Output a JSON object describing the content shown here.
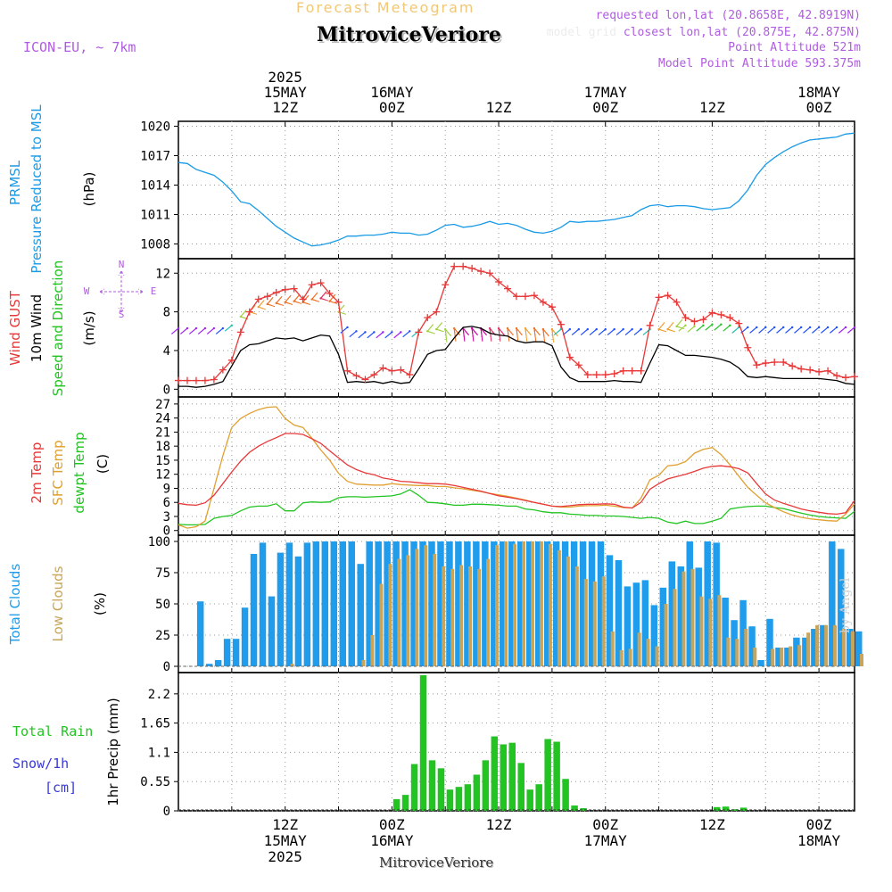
{
  "header": {
    "product": "Forecast Meteogram",
    "location": "MitroviceVeriore",
    "model": "ICON-EU, ~ 7km",
    "requested": "requested lon,lat (20.8658E, 42.8919N)",
    "closest": "closest lon,lat (20.875E, 42.875N)",
    "grid_prefix": "model grid",
    "point_altitude": "Point Altitude 521m",
    "model_altitude": "Model Point Altitude 593.375m",
    "credit": "by Angel",
    "footer_location": "MitroviceVeriore"
  },
  "time_axis": {
    "top": [
      {
        "hour": 12,
        "lines": [
          "2025",
          "15MAY",
          "12Z"
        ]
      },
      {
        "hour": 24,
        "lines": [
          "16MAY",
          "00Z"
        ]
      },
      {
        "hour": 36,
        "lines": [
          "12Z"
        ]
      },
      {
        "hour": 48,
        "lines": [
          "17MAY",
          "00Z"
        ]
      },
      {
        "hour": 60,
        "lines": [
          "12Z"
        ]
      },
      {
        "hour": 72,
        "lines": [
          "18MAY",
          "00Z"
        ]
      }
    ],
    "bottom": [
      {
        "hour": 12,
        "lines": [
          "12Z",
          "15MAY",
          "2025"
        ]
      },
      {
        "hour": 24,
        "lines": [
          "00Z",
          "16MAY"
        ]
      },
      {
        "hour": 36,
        "lines": [
          "12Z"
        ]
      },
      {
        "hour": 48,
        "lines": [
          "00Z",
          "17MAY"
        ]
      },
      {
        "hour": 60,
        "lines": [
          "12Z"
        ]
      },
      {
        "hour": 72,
        "lines": [
          "00Z",
          "18MAY"
        ]
      }
    ]
  },
  "panels": {
    "pressure": {
      "labels": [
        "PRMSL",
        "Pressure Reduced to MSL"
      ],
      "unit": "(hPa)"
    },
    "wind": {
      "labels": [
        "Wind GUST",
        "10m Wind",
        "Speed and Direction"
      ],
      "unit": "(m/s)",
      "compass": [
        "N",
        "S",
        "W",
        "E"
      ]
    },
    "temp": {
      "labels": [
        "2m Temp",
        "SFC Temp",
        "dewpt Temp"
      ],
      "unit": "(C)"
    },
    "clouds": {
      "labels": [
        "Total Clouds",
        "Low Clouds"
      ],
      "unit": "(%)"
    },
    "precip": {
      "labels": [
        "Total  Rain",
        "Snow/1h",
        "[cm]"
      ],
      "unit": "1hr Precip (mm)"
    }
  },
  "colors": {
    "pressure": "#1a9be6",
    "gust": "#e83838",
    "wind": "#000000",
    "sfc": "#e0a030",
    "dewpt": "#22c422",
    "t2m": "#e83838",
    "total": "#1f9ceb",
    "low": "#c8a55a",
    "rain": "#22c422",
    "purple": "#b05ce0",
    "header": "#f0c878"
  },
  "chart_data": [
    {
      "type": "line",
      "title": "PRMSL Pressure Reduced to MSL",
      "ylabel": "(hPa)",
      "x_start_hour": 0,
      "step_hours": 1,
      "ylim": [
        1006.5,
        1020.5
      ],
      "yticks": [
        1008,
        1011,
        1014,
        1017,
        1020
      ],
      "series": [
        {
          "name": "PRMSL",
          "values": [
            1016.3,
            1016.2,
            1015.6,
            1015.3,
            1015.0,
            1014.3,
            1013.4,
            1012.3,
            1012.1,
            1011.4,
            1010.6,
            1009.8,
            1009.2,
            1008.6,
            1008.2,
            1007.8,
            1007.9,
            1008.1,
            1008.4,
            1008.8,
            1008.8,
            1008.9,
            1008.9,
            1009.0,
            1009.2,
            1009.1,
            1009.1,
            1008.9,
            1009.0,
            1009.4,
            1009.9,
            1010.0,
            1009.7,
            1009.8,
            1010.0,
            1010.3,
            1010.0,
            1010.1,
            1009.9,
            1009.5,
            1009.2,
            1009.1,
            1009.3,
            1009.7,
            1010.3,
            1010.2,
            1010.3,
            1010.3,
            1010.4,
            1010.5,
            1010.7,
            1010.9,
            1011.5,
            1011.9,
            1012.0,
            1011.8,
            1011.9,
            1011.9,
            1011.8,
            1011.6,
            1011.5,
            1011.6,
            1011.7,
            1012.4,
            1013.5,
            1015.0,
            1016.1,
            1016.8,
            1017.4,
            1017.9,
            1018.3,
            1018.6,
            1018.7,
            1018.8,
            1018.9,
            1019.2,
            1019.3
          ]
        }
      ]
    },
    {
      "type": "line",
      "title": "Wind GUST / 10m Wind Speed and Direction",
      "ylabel": "(m/s)",
      "x_start_hour": 0,
      "step_hours": 1,
      "ylim": [
        -0.8,
        13.5
      ],
      "yticks": [
        0,
        4,
        8,
        12
      ],
      "series": [
        {
          "name": "Wind GUST",
          "values": [
            0.9,
            0.9,
            0.9,
            0.9,
            1.0,
            2.0,
            3.0,
            5.9,
            8.0,
            9.3,
            9.6,
            10.0,
            10.3,
            10.4,
            9.3,
            10.8,
            11.0,
            9.9,
            9.0,
            1.9,
            1.4,
            1.0,
            1.5,
            2.2,
            1.9,
            2.0,
            1.5,
            5.9,
            7.4,
            8.0,
            10.8,
            12.7,
            12.7,
            12.5,
            12.2,
            12.0,
            11.1,
            10.4,
            9.6,
            9.6,
            9.7,
            9.0,
            8.5,
            6.7,
            3.3,
            2.5,
            1.5,
            1.5,
            1.5,
            1.6,
            1.9,
            1.9,
            1.9,
            6.6,
            9.5,
            9.7,
            9.0,
            7.4,
            7.0,
            7.2,
            7.9,
            7.7,
            7.4,
            6.8,
            4.3,
            2.5,
            2.7,
            2.8,
            2.8,
            2.4,
            2.1,
            2.0,
            1.8,
            1.9,
            1.4,
            1.2,
            1.3
          ]
        },
        {
          "name": "10m Wind",
          "values": [
            0.3,
            0.3,
            0.2,
            0.3,
            0.5,
            0.8,
            2.4,
            4.0,
            4.6,
            4.7,
            5.0,
            5.3,
            5.2,
            5.3,
            5.0,
            5.3,
            5.6,
            5.5,
            3.6,
            0.7,
            0.8,
            0.7,
            0.8,
            0.6,
            0.8,
            0.6,
            0.7,
            2.1,
            3.6,
            4.0,
            4.1,
            5.3,
            6.4,
            6.5,
            6.3,
            5.8,
            5.6,
            5.5,
            5.0,
            4.8,
            4.9,
            4.9,
            4.5,
            2.3,
            1.2,
            0.8,
            0.8,
            0.8,
            0.8,
            0.9,
            0.8,
            0.8,
            0.7,
            2.7,
            4.6,
            4.5,
            4.0,
            3.5,
            3.5,
            3.4,
            3.3,
            3.1,
            2.8,
            2.2,
            1.3,
            1.2,
            1.3,
            1.2,
            1.1,
            1.1,
            1.1,
            1.1,
            1.1,
            1.0,
            0.9,
            0.6,
            0.5
          ]
        },
        {
          "name": "Wind barbs",
          "values": [
            6.3,
            6.3,
            6.3,
            6.3,
            6.3,
            6.3,
            6.6,
            7.5,
            8.0,
            8.5,
            8.8,
            8.9,
            9.0,
            9.1,
            9.0,
            9.3,
            9.4,
            9.1,
            8.0,
            6.4,
            6.0,
            5.9,
            5.9,
            5.9,
            5.9,
            5.9,
            6.0,
            6.0,
            6.0,
            6.2,
            6.2,
            6.3,
            6.3,
            6.3,
            6.3,
            6.3,
            6.3,
            6.3,
            6.3,
            6.3,
            6.3,
            6.2,
            6.2,
            6.2,
            6.2,
            6.2,
            6.2,
            6.2,
            6.2,
            6.2,
            6.2,
            6.2,
            6.2,
            6.2,
            6.2,
            6.2,
            6.5,
            6.6,
            6.5,
            6.6,
            6.7,
            6.7,
            6.6,
            6.4,
            6.4,
            6.4,
            6.4,
            6.4,
            6.4,
            6.4,
            6.4,
            6.4,
            6.4,
            6.4,
            6.4,
            6.4,
            6.4
          ]
        }
      ]
    },
    {
      "type": "line",
      "title": "2m Temp / SFC Temp / dewpt Temp",
      "ylabel": "(C)",
      "x_start_hour": 0,
      "step_hours": 1,
      "ylim": [
        -1,
        28.5
      ],
      "yticks": [
        0,
        3,
        6,
        9,
        12,
        15,
        18,
        21,
        24,
        27
      ],
      "series": [
        {
          "name": "2m Temp",
          "values": [
            5.8,
            5.5,
            5.4,
            5.9,
            7.5,
            10.0,
            12.5,
            14.8,
            16.7,
            18.0,
            19.0,
            19.8,
            20.7,
            20.7,
            20.5,
            19.6,
            18.6,
            17.0,
            15.5,
            14.0,
            13.0,
            12.3,
            11.9,
            11.2,
            10.9,
            10.5,
            10.4,
            10.2,
            10.0,
            10.0,
            9.9,
            9.6,
            9.2,
            8.8,
            8.4,
            7.9,
            7.4,
            7.1,
            6.8,
            6.4,
            6.0,
            5.6,
            5.2,
            5.1,
            5.3,
            5.5,
            5.6,
            5.6,
            5.7,
            5.6,
            5.0,
            4.8,
            6.0,
            8.8,
            10.0,
            11.0,
            11.5,
            12.0,
            12.6,
            13.3,
            13.7,
            13.8,
            13.6,
            13.2,
            12.3,
            10.0,
            7.8,
            6.5,
            5.8,
            5.2,
            4.6,
            4.2,
            3.9,
            3.6,
            3.5,
            3.8,
            6.4
          ]
        },
        {
          "name": "SFC Temp",
          "values": [
            1.2,
            0.5,
            0.8,
            2.0,
            9.0,
            16.0,
            22.0,
            23.9,
            25.0,
            25.8,
            26.3,
            26.4,
            23.9,
            22.5,
            22.0,
            19.7,
            17.2,
            15.0,
            12.2,
            10.5,
            9.9,
            9.8,
            9.7,
            9.7,
            10.0,
            9.8,
            9.7,
            9.6,
            9.6,
            9.4,
            9.4,
            9.1,
            8.9,
            8.6,
            8.3,
            7.9,
            7.6,
            7.3,
            6.9,
            6.5,
            6.0,
            5.6,
            5.2,
            5.0,
            5.0,
            5.2,
            5.3,
            5.3,
            5.4,
            5.2,
            4.9,
            4.8,
            6.9,
            10.8,
            11.8,
            13.8,
            14.0,
            14.7,
            16.5,
            17.3,
            17.7,
            16.2,
            14.0,
            11.6,
            9.2,
            7.5,
            5.9,
            4.9,
            4.0,
            3.3,
            2.8,
            2.5,
            2.3,
            2.1,
            2.0,
            3.5,
            5.7
          ]
        },
        {
          "name": "dewpt Temp",
          "values": [
            1.3,
            1.2,
            1.2,
            1.3,
            2.6,
            3.0,
            3.2,
            4.2,
            5.0,
            5.2,
            5.2,
            5.7,
            4.2,
            4.2,
            5.9,
            6.1,
            6.0,
            6.1,
            7.0,
            7.2,
            7.2,
            7.1,
            7.2,
            7.3,
            7.4,
            7.8,
            8.7,
            7.5,
            6.0,
            5.9,
            5.7,
            5.4,
            5.4,
            5.6,
            5.6,
            5.5,
            5.4,
            5.2,
            5.2,
            4.6,
            4.4,
            4.0,
            3.8,
            3.8,
            3.5,
            3.4,
            3.2,
            3.2,
            3.1,
            3.1,
            3.0,
            2.8,
            2.6,
            2.8,
            2.6,
            1.8,
            1.5,
            2.0,
            1.5,
            1.5,
            2.0,
            2.6,
            4.6,
            4.9,
            5.1,
            5.2,
            5.2,
            4.9,
            4.7,
            4.2,
            3.7,
            3.3,
            3.0,
            2.8,
            2.7,
            2.6,
            4.1
          ]
        }
      ]
    },
    {
      "type": "bar",
      "title": "Total Clouds / Low Clouds",
      "ylabel": "(%)",
      "x_start_hour": 0,
      "step_hours": 1,
      "ylim": [
        -5,
        105
      ],
      "yticks": [
        0,
        25,
        50,
        75,
        100
      ],
      "series": [
        {
          "name": "Total Clouds",
          "values": [
            0,
            0,
            52,
            2,
            5,
            22,
            22,
            47,
            90,
            99,
            56,
            91,
            99,
            88,
            99,
            100,
            100,
            100,
            100,
            100,
            82,
            100,
            100,
            100,
            100,
            100,
            100,
            100,
            100,
            100,
            100,
            100,
            100,
            100,
            100,
            100,
            100,
            100,
            100,
            100,
            100,
            100,
            100,
            100,
            100,
            100,
            100,
            100,
            89,
            85,
            64,
            67,
            69,
            49,
            63,
            84,
            80,
            100,
            79,
            100,
            99,
            55,
            37,
            53,
            32,
            5,
            38,
            15,
            15,
            23,
            23,
            30,
            33,
            100,
            94,
            30,
            28
          ]
        },
        {
          "name": "Low Clouds",
          "values": [
            0,
            0,
            0,
            0,
            0,
            0,
            0,
            0,
            0,
            0,
            0,
            0,
            2,
            0,
            0,
            0,
            0,
            0,
            0,
            0,
            5,
            25,
            66,
            82,
            86,
            89,
            94,
            97,
            90,
            80,
            78,
            81,
            80,
            78,
            86,
            97,
            100,
            98,
            100,
            100,
            100,
            98,
            93,
            88,
            80,
            70,
            68,
            72,
            28,
            13,
            14,
            27,
            22,
            16,
            50,
            62,
            76,
            78,
            56,
            54,
            57,
            23,
            22,
            30,
            15,
            0,
            14,
            15,
            16,
            17,
            27,
            33,
            33,
            33,
            30,
            28,
            10
          ]
        }
      ]
    },
    {
      "type": "bar",
      "title": "1hr Precip (mm)",
      "ylabel": "1hr Precip (mm)",
      "x_start_hour": 0,
      "step_hours": 1,
      "ylim": [
        0,
        2.6
      ],
      "yticks": [
        0,
        0.55,
        1.1,
        1.65,
        2.2
      ],
      "series": [
        {
          "name": "Total Rain",
          "values": [
            0,
            0,
            0,
            0,
            0,
            0,
            0,
            0,
            0,
            0,
            0,
            0,
            0,
            0,
            0,
            0,
            0,
            0,
            0,
            0,
            0,
            0,
            0,
            0,
            0.22,
            0.3,
            0.88,
            2.55,
            0.95,
            0.8,
            0.4,
            0.45,
            0.5,
            0.68,
            0.95,
            1.4,
            1.25,
            1.28,
            0.9,
            0.4,
            0.5,
            1.35,
            1.3,
            0.6,
            0.1,
            0.05,
            0,
            0,
            0,
            0,
            0,
            0,
            0,
            0,
            0,
            0,
            0,
            0,
            0,
            0,
            0.07,
            0.08,
            0.03,
            0.06,
            0,
            0,
            0,
            0,
            0,
            0,
            0,
            0,
            0,
            0,
            0,
            0,
            0
          ]
        }
      ]
    }
  ]
}
